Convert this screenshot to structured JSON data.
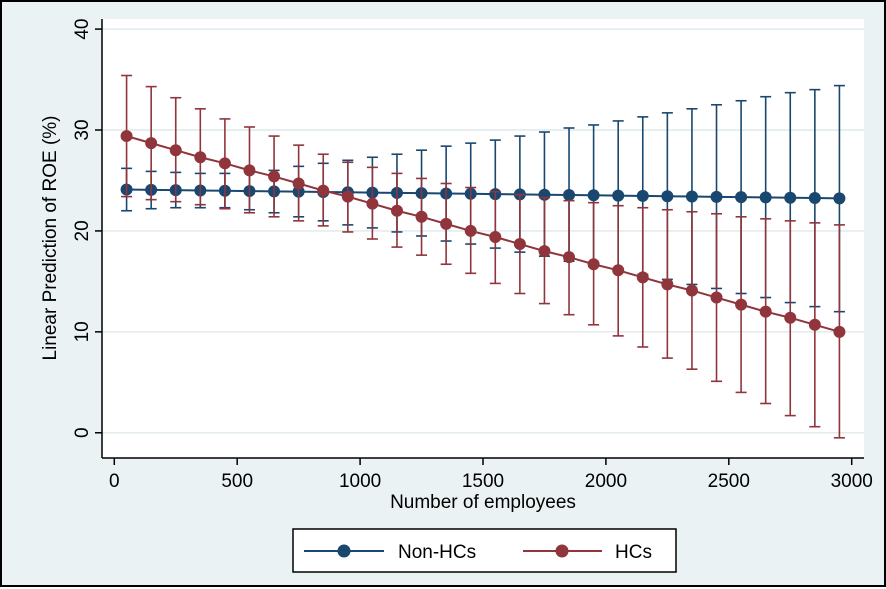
{
  "chart_data": {
    "type": "line",
    "xlabel": "Number of employees",
    "ylabel": "Linear Prediction of ROE (%)",
    "xlim": [
      -50,
      3050
    ],
    "ylim": [
      -2.5,
      41
    ],
    "x_ticks": [
      0,
      500,
      1000,
      1500,
      2000,
      2500,
      3000
    ],
    "y_ticks": [
      0,
      10,
      20,
      30,
      40
    ],
    "x_tick_labels": [
      "0",
      "500",
      "1000",
      "1500",
      "2000",
      "2500",
      "3000"
    ],
    "y_tick_labels": [
      "0",
      "10",
      "20",
      "30",
      "40"
    ],
    "grid": true,
    "legend_position": "bottom",
    "x": [
      50,
      150,
      250,
      350,
      450,
      550,
      650,
      750,
      850,
      950,
      1050,
      1150,
      1250,
      1350,
      1450,
      1550,
      1650,
      1750,
      1850,
      1950,
      2050,
      2150,
      2250,
      2350,
      2450,
      2550,
      2650,
      2750,
      2850,
      2950
    ],
    "series": [
      {
        "name": "Non-HCs",
        "color": "#1a476f",
        "values": [
          24.1,
          24.07,
          24.04,
          24.01,
          23.98,
          23.95,
          23.92,
          23.89,
          23.86,
          23.83,
          23.8,
          23.77,
          23.74,
          23.71,
          23.68,
          23.65,
          23.62,
          23.59,
          23.56,
          23.53,
          23.5,
          23.47,
          23.44,
          23.41,
          23.38,
          23.35,
          23.32,
          23.29,
          23.26,
          23.23
        ],
        "ci_low": [
          22.0,
          22.2,
          22.3,
          22.3,
          22.3,
          22.1,
          21.8,
          21.4,
          21.0,
          20.6,
          20.3,
          19.9,
          19.5,
          19.0,
          18.7,
          18.3,
          17.9,
          17.5,
          17.0,
          16.5,
          16.1,
          15.7,
          15.2,
          14.7,
          14.3,
          13.8,
          13.4,
          12.9,
          12.5,
          12.0
        ],
        "ci_high": [
          26.2,
          25.9,
          25.8,
          25.7,
          25.7,
          25.8,
          26.0,
          26.4,
          26.7,
          27.0,
          27.3,
          27.6,
          28.0,
          28.4,
          28.7,
          29.0,
          29.4,
          29.8,
          30.2,
          30.5,
          30.9,
          31.3,
          31.7,
          32.1,
          32.5,
          32.9,
          33.3,
          33.7,
          34.0,
          34.4
        ]
      },
      {
        "name": "HCs",
        "color": "#90353b",
        "values": [
          29.4,
          28.7,
          28.0,
          27.3,
          26.7,
          26.0,
          25.4,
          24.7,
          24.0,
          23.4,
          22.7,
          22.0,
          21.4,
          20.7,
          20.0,
          19.4,
          18.7,
          18.0,
          17.4,
          16.7,
          16.1,
          15.4,
          14.7,
          14.1,
          13.4,
          12.7,
          12.0,
          11.4,
          10.7,
          10.0
        ],
        "ci_low": [
          23.4,
          23.1,
          22.9,
          22.6,
          22.2,
          21.8,
          21.4,
          21.0,
          20.5,
          19.9,
          19.2,
          18.4,
          17.6,
          16.7,
          15.8,
          14.8,
          13.8,
          12.8,
          11.7,
          10.7,
          9.6,
          8.5,
          7.4,
          6.3,
          5.1,
          4.0,
          2.9,
          1.7,
          0.6,
          -0.5
        ],
        "ci_high": [
          35.4,
          34.3,
          33.2,
          32.1,
          31.1,
          30.3,
          29.4,
          28.5,
          27.6,
          26.8,
          26.3,
          25.7,
          25.2,
          24.7,
          24.3,
          23.9,
          23.6,
          23.3,
          23.0,
          22.8,
          22.5,
          22.3,
          22.1,
          21.9,
          21.7,
          21.4,
          21.2,
          21.0,
          20.8,
          20.6
        ]
      }
    ]
  }
}
